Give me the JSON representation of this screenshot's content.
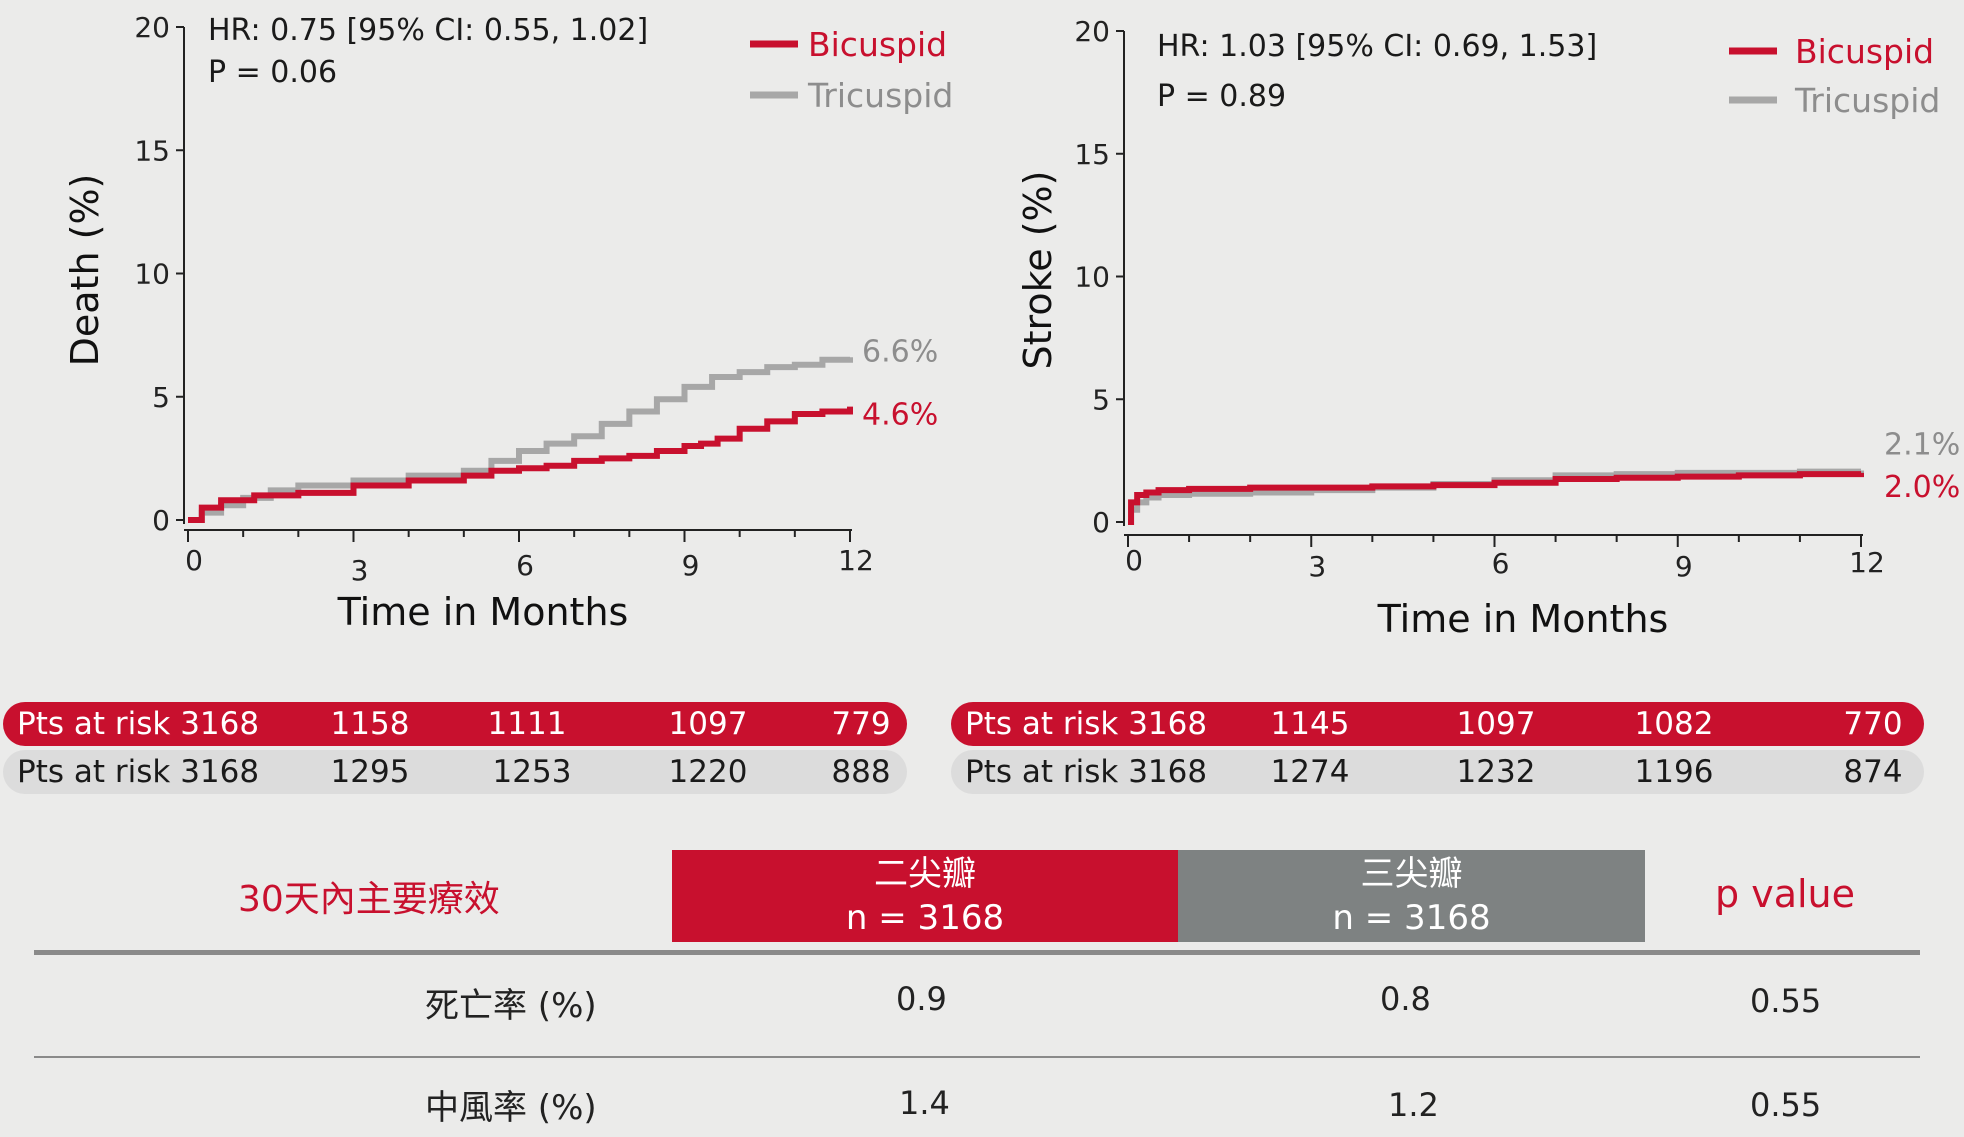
{
  "chart_data": [
    {
      "type": "line",
      "ylabel": "Death (%)",
      "xlabel": "Time in Months",
      "xlim": [
        0,
        12
      ],
      "ylim": [
        0,
        20
      ],
      "xticks": [
        "0",
        "3",
        "6",
        "9",
        "12"
      ],
      "yticks": [
        "0",
        "5",
        "10",
        "15",
        "20"
      ],
      "annotation": [
        "HR: 0.75 [95% CI: 0.55, 1.02]",
        "P = 0.06"
      ],
      "legend": [
        "Bicuspid",
        "Tricuspid"
      ],
      "legend_position": "top-right",
      "series": [
        {
          "name": "Bicuspid",
          "color": "#c8102e",
          "end_label": "4.6%",
          "x": [
            0,
            0.25,
            0.6,
            1.2,
            2.0,
            3.0,
            4.0,
            5.0,
            5.5,
            6.0,
            6.5,
            7.0,
            7.5,
            8.0,
            8.5,
            9.0,
            9.3,
            9.6,
            10.0,
            10.5,
            11.0,
            11.5,
            12.0
          ],
          "values": [
            0,
            0.5,
            0.8,
            1.0,
            1.1,
            1.4,
            1.6,
            1.8,
            2.0,
            2.1,
            2.2,
            2.4,
            2.5,
            2.6,
            2.8,
            3.0,
            3.1,
            3.3,
            3.7,
            4.0,
            4.3,
            4.4,
            4.6
          ]
        },
        {
          "name": "Tricuspid",
          "color": "#a7a7a7",
          "end_label": "6.6%",
          "x": [
            0,
            0.25,
            0.6,
            1.0,
            1.5,
            2.0,
            3.0,
            4.0,
            5.0,
            5.5,
            6.0,
            6.5,
            7.0,
            7.5,
            8.0,
            8.5,
            9.0,
            9.5,
            10.0,
            10.5,
            11.0,
            11.5,
            12.0
          ],
          "values": [
            0,
            0.3,
            0.6,
            0.9,
            1.2,
            1.4,
            1.6,
            1.8,
            2.0,
            2.4,
            2.8,
            3.1,
            3.4,
            3.9,
            4.4,
            4.9,
            5.4,
            5.8,
            6.0,
            6.2,
            6.3,
            6.5,
            6.6
          ]
        }
      ],
      "risk_table": {
        "label": "Pts at risk",
        "rows": [
          {
            "series": "Bicuspid",
            "values": [
              "3168",
              "1158",
              "1111",
              "1097",
              "779"
            ]
          },
          {
            "series": "Tricuspid",
            "values": [
              "3168",
              "1295",
              "1253",
              "1220",
              "888"
            ]
          }
        ]
      }
    },
    {
      "type": "line",
      "ylabel": "Stroke (%)",
      "xlabel": "Time in Months",
      "xlim": [
        0,
        12
      ],
      "ylim": [
        0,
        20
      ],
      "xticks": [
        "0",
        "3",
        "6",
        "9",
        "12"
      ],
      "yticks": [
        "0",
        "5",
        "10",
        "15",
        "20"
      ],
      "annotation": [
        "HR: 1.03 [95% CI: 0.69, 1.53]",
        "P = 0.89"
      ],
      "legend": [
        "Bicuspid",
        "Tricuspid"
      ],
      "legend_position": "top-right",
      "series": [
        {
          "name": "Bicuspid",
          "color": "#c8102e",
          "end_label": "2.0%",
          "x": [
            0,
            0.05,
            0.15,
            0.3,
            0.5,
            1.0,
            2.0,
            3.0,
            4.0,
            5.0,
            6.0,
            7.0,
            8.0,
            9.0,
            10.0,
            11.0,
            12.0
          ],
          "values": [
            0,
            0.8,
            1.1,
            1.2,
            1.3,
            1.35,
            1.4,
            1.4,
            1.45,
            1.5,
            1.6,
            1.75,
            1.8,
            1.85,
            1.9,
            1.95,
            2.0
          ]
        },
        {
          "name": "Tricuspid",
          "color": "#a7a7a7",
          "end_label": "2.1%",
          "x": [
            0,
            0.05,
            0.15,
            0.3,
            0.5,
            1.0,
            2.0,
            3.0,
            4.0,
            5.0,
            6.0,
            7.0,
            8.0,
            9.0,
            10.0,
            11.0,
            12.0
          ],
          "values": [
            0,
            0.5,
            0.8,
            1.0,
            1.1,
            1.15,
            1.2,
            1.3,
            1.4,
            1.55,
            1.7,
            1.9,
            1.95,
            2.0,
            2.0,
            2.05,
            2.1
          ]
        }
      ],
      "risk_table": {
        "label": "Pts at risk",
        "rows": [
          {
            "series": "Bicuspid",
            "values": [
              "3168",
              "1145",
              "1097",
              "1082",
              "770"
            ]
          },
          {
            "series": "Tricuspid",
            "values": [
              "3168",
              "1274",
              "1232",
              "1196",
              "874"
            ]
          }
        ]
      }
    },
    {
      "type": "table",
      "title": "30天內主要療效",
      "columns": [
        {
          "label": "二尖瓣",
          "sub": "n = 3168"
        },
        {
          "label": "三尖瓣",
          "sub": "n = 3168"
        },
        {
          "label": "p value"
        }
      ],
      "rows": [
        {
          "label": "死亡率 (%)",
          "values": [
            "0.9",
            "0.8",
            "0.55"
          ]
        },
        {
          "label": "中風率 (%)",
          "values": [
            "1.4",
            "1.2",
            "0.55"
          ]
        }
      ]
    }
  ],
  "colors": {
    "bicuspid": "#c8102e",
    "tricuspid": "#a7a7a7",
    "tricuspid_header": "#7e8282",
    "background": "#ebebea"
  }
}
